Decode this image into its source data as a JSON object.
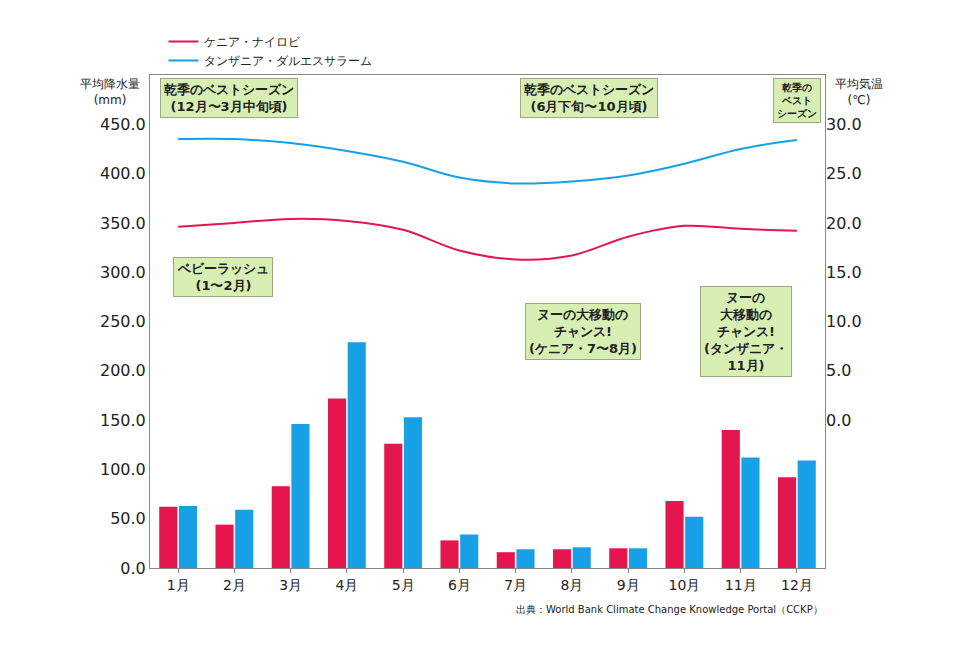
{
  "chart_data": {
    "type": "bar",
    "categories": [
      "1月",
      "2月",
      "3月",
      "4月",
      "5月",
      "6月",
      "7月",
      "8月",
      "9月",
      "10月",
      "11月",
      "12月"
    ],
    "series": [
      {
        "name": "ケニア・ナイロビ",
        "color": "#e5154e",
        "type": "bar",
        "values": [
          62,
          44,
          83,
          172,
          126,
          28,
          16,
          19,
          20,
          68,
          140,
          92
        ]
      },
      {
        "name": "タンザニア・ダルエスサラーム",
        "color": "#17a0e5",
        "type": "bar",
        "values": [
          63,
          59,
          146,
          229,
          153,
          34,
          19,
          21,
          20,
          52,
          112,
          109
        ]
      },
      {
        "name": "ケニア・ナイロビ",
        "color": "#e5154e",
        "type": "line",
        "axis": "y2",
        "values": [
          19.6,
          20.0,
          20.4,
          20.2,
          19.3,
          17.2,
          16.3,
          16.7,
          18.6,
          19.7,
          19.4,
          19.2
        ]
      },
      {
        "name": "タンザニア・ダルエスサラーム",
        "color": "#17a0e5",
        "type": "line",
        "axis": "y2",
        "values": [
          28.5,
          28.5,
          28.1,
          27.3,
          26.2,
          24.6,
          24.0,
          24.2,
          24.8,
          26.0,
          27.5,
          28.4
        ]
      }
    ],
    "y_label": [
      "平均降水量",
      "(mm)"
    ],
    "y2_label": [
      "平均気温",
      "(℃)"
    ],
    "ylim": [
      0,
      500
    ],
    "yticks": [
      {
        "value": 0,
        "label": "0.0"
      },
      {
        "value": 50,
        "label": "50.0"
      },
      {
        "value": 100,
        "label": "100.0"
      },
      {
        "value": 150,
        "label": "150.0"
      },
      {
        "value": 200,
        "label": "200.0"
      },
      {
        "value": 250,
        "label": "250.0"
      },
      {
        "value": 300,
        "label": "300.0"
      },
      {
        "value": 350,
        "label": "350.0"
      },
      {
        "value": 400,
        "label": "400.0"
      },
      {
        "value": 450,
        "label": "450.0"
      }
    ],
    "y2lim": [
      -15,
      35
    ],
    "y2ticks": [
      {
        "value": 0,
        "label": "0.0"
      },
      {
        "value": 5,
        "label": "5.0"
      },
      {
        "value": 10,
        "label": "10.0"
      },
      {
        "value": 15,
        "label": "15.0"
      },
      {
        "value": 20,
        "label": "20.0"
      },
      {
        "value": 25,
        "label": "25.0"
      },
      {
        "value": 30,
        "label": "30.0"
      }
    ],
    "annotations": [
      {
        "text": [
          "乾季のベストシーズン",
          "(12月〜3月中旬頃)"
        ]
      },
      {
        "text": [
          "乾季のベストシーズン",
          "(6月下旬〜10月頃)"
        ]
      },
      {
        "text": [
          "乾季の",
          "ベスト",
          "シーズン"
        ]
      },
      {
        "text": [
          "ベビーラッシュ",
          "(1〜2月)"
        ]
      },
      {
        "text": [
          "ヌーの大移動の",
          "チャンス!",
          "(ケニア・7〜8月)"
        ]
      },
      {
        "text": [
          "ヌーの",
          "大移動の",
          "チャンス!",
          "(タンザニア・",
          "11月)"
        ]
      }
    ],
    "source": "出典：World Bank Climate Change Knowledge Portal（CCKP）",
    "legend": "top left",
    "grid": false
  }
}
